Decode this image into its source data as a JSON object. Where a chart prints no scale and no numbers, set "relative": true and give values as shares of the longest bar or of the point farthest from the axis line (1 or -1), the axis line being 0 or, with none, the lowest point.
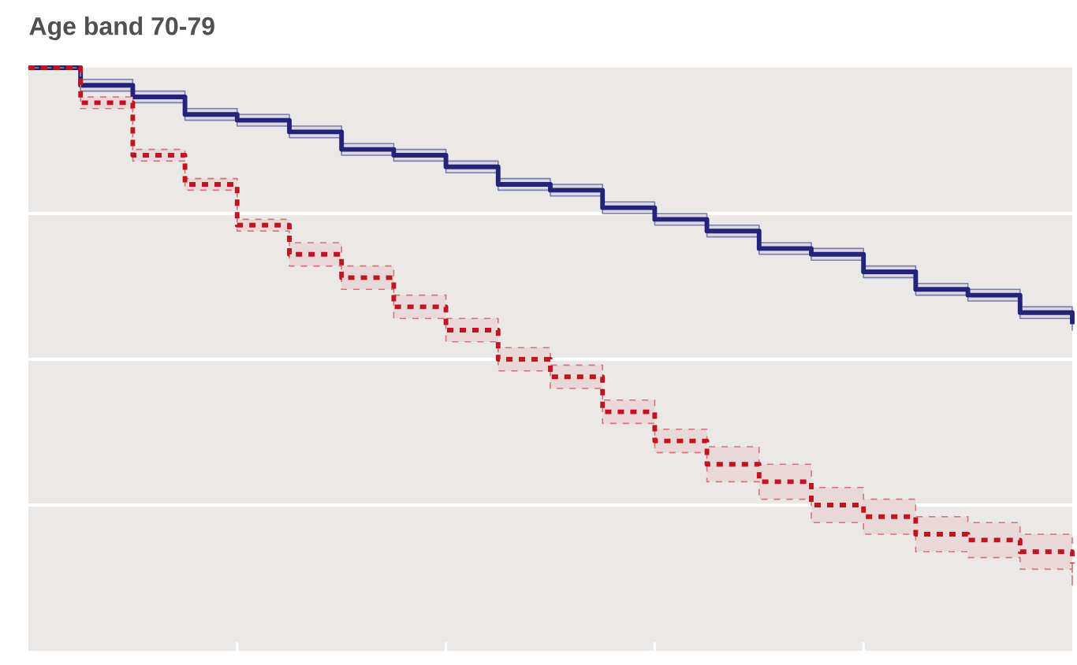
{
  "chart_data": {
    "type": "step",
    "title": "Age band 70-79",
    "relative": true,
    "grid": "y",
    "tick_labels": false,
    "categories": [
      null,
      null,
      null,
      null,
      null,
      null,
      null,
      null,
      null,
      null,
      null,
      null,
      null,
      null,
      null,
      null,
      null,
      null,
      null,
      null,
      null
    ],
    "series": [
      {
        "color": "#23237a",
        "line_style": "solid",
        "values": [
          1.0,
          0.97,
          0.95,
          0.92,
          0.91,
          0.89,
          0.86,
          0.85,
          0.83,
          0.8,
          0.79,
          0.76,
          0.74,
          0.72,
          0.69,
          0.68,
          0.65,
          0.62,
          0.61,
          0.58,
          0.56
        ],
        "lower": [
          1.0,
          0.96,
          0.94,
          0.91,
          0.9,
          0.88,
          0.85,
          0.84,
          0.82,
          0.79,
          0.78,
          0.75,
          0.73,
          0.71,
          0.68,
          0.67,
          0.64,
          0.61,
          0.6,
          0.57,
          0.55
        ],
        "upper": [
          1.0,
          0.98,
          0.96,
          0.93,
          0.92,
          0.9,
          0.87,
          0.86,
          0.84,
          0.81,
          0.8,
          0.77,
          0.75,
          0.73,
          0.7,
          0.69,
          0.66,
          0.63,
          0.62,
          0.59,
          0.57
        ]
      },
      {
        "color": "#c0141e",
        "line_style": "dashed",
        "values": [
          1.0,
          0.94,
          0.85,
          0.8,
          0.73,
          0.68,
          0.64,
          0.59,
          0.55,
          0.5,
          0.47,
          0.41,
          0.36,
          0.32,
          0.29,
          0.25,
          0.23,
          0.2,
          0.19,
          0.17,
          0.15
        ],
        "lower": [
          1.0,
          0.93,
          0.84,
          0.79,
          0.72,
          0.66,
          0.62,
          0.57,
          0.53,
          0.48,
          0.45,
          0.39,
          0.34,
          0.29,
          0.26,
          0.22,
          0.2,
          0.17,
          0.16,
          0.14,
          0.11
        ],
        "upper": [
          1.0,
          0.95,
          0.86,
          0.81,
          0.74,
          0.7,
          0.66,
          0.61,
          0.57,
          0.52,
          0.49,
          0.43,
          0.38,
          0.35,
          0.32,
          0.28,
          0.26,
          0.23,
          0.22,
          0.2,
          0.2
        ]
      }
    ]
  }
}
